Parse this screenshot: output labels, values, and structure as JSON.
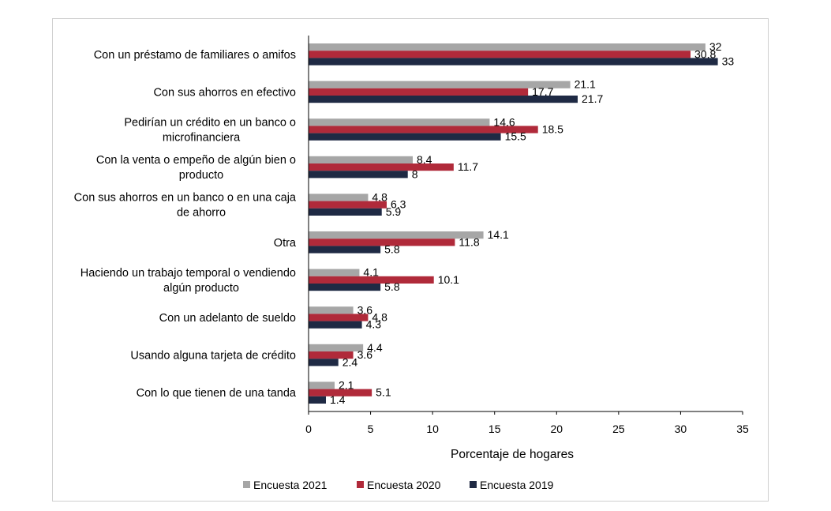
{
  "chart_data": {
    "type": "bar",
    "orientation": "horizontal",
    "categories": [
      "Con un préstamo de familiares o amifos",
      "Con sus ahorros en efectivo",
      "Pedirían un crédito en un banco o microfinanciera",
      "Con la venta o empeño de algún bien o producto",
      "Con sus ahorros en un banco o en una caja de ahorro",
      "Otra",
      "Haciendo un trabajo temporal o vendiendo algún producto",
      "Con un adelanto de sueldo",
      "Usando alguna tarjeta de crédito",
      "Con lo que tienen de una tanda"
    ],
    "category_lines": [
      [
        "Con un préstamo de familiares o amifos"
      ],
      [
        "Con sus ahorros en efectivo"
      ],
      [
        "Pedirían un crédito en un banco o",
        "microfinanciera"
      ],
      [
        "Con la venta o empeño de algún bien o",
        "producto"
      ],
      [
        "Con sus ahorros en un banco o en una caja",
        "de ahorro"
      ],
      [
        "Otra"
      ],
      [
        "Haciendo un trabajo temporal o vendiendo",
        "algún producto"
      ],
      [
        "Con un adelanto de sueldo"
      ],
      [
        "Usando alguna tarjeta de crédito"
      ],
      [
        "Con lo que tienen de una tanda"
      ]
    ],
    "series": [
      {
        "name": "Encuesta 2021",
        "color": "#a6a6a6",
        "values": [
          32,
          21.1,
          14.6,
          8.4,
          4.8,
          14.1,
          4.1,
          3.6,
          4.4,
          2.1
        ]
      },
      {
        "name": "Encuesta 2020",
        "color": "#b02a3a",
        "values": [
          30.8,
          17.7,
          18.5,
          11.7,
          6.3,
          11.8,
          10.1,
          4.8,
          3.6,
          5.1
        ]
      },
      {
        "name": "Encuesta 2019",
        "color": "#1f2a44",
        "values": [
          33,
          21.7,
          15.5,
          8,
          5.9,
          5.8,
          5.8,
          4.3,
          2.4,
          1.4
        ]
      }
    ],
    "xlabel": "Porcentaje de hogares",
    "ylabel": "",
    "xlim": [
      0,
      35
    ],
    "xticks": [
      0,
      5,
      10,
      15,
      20,
      25,
      30,
      35
    ],
    "grid": false,
    "legend": "bottom"
  }
}
